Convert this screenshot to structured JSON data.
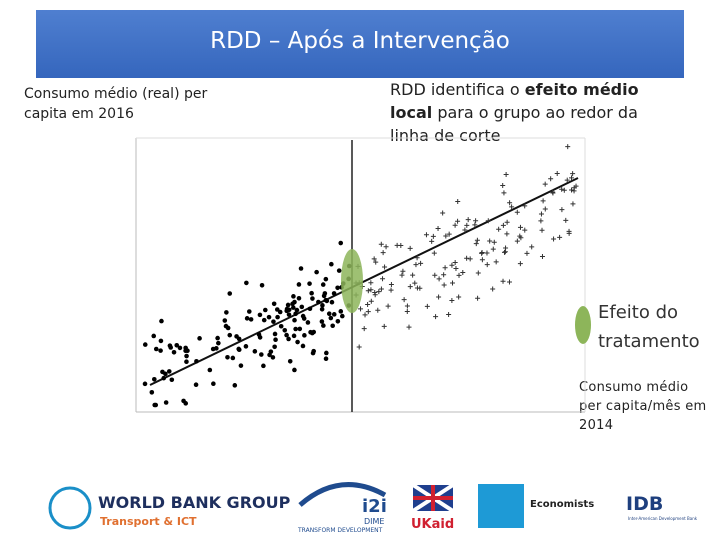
{
  "title": "RDD – Após a Intervenção",
  "y_label": "Consumo médio (real) per capita em 2016",
  "annotation": {
    "before": "RDD identifica o ",
    "bold": "efeito médio local",
    "after": " para o grupo ao redor da linha de corte"
  },
  "legend": "Efeito do tratamento",
  "x_label": "Consumo médio per capita/mês em 2014",
  "logos": {
    "wbg": "WORLD BANK GROUP",
    "wbg_sub": "Transport & ICT",
    "i2i": "i2i",
    "dime": "DIME",
    "dime_sub": "TRANSFORM DEVELOPMENT",
    "ukaid": "UKaid",
    "economists": "Economists",
    "idb": "IDB",
    "idb_sub": "Inter-American Development Bank"
  }
}
